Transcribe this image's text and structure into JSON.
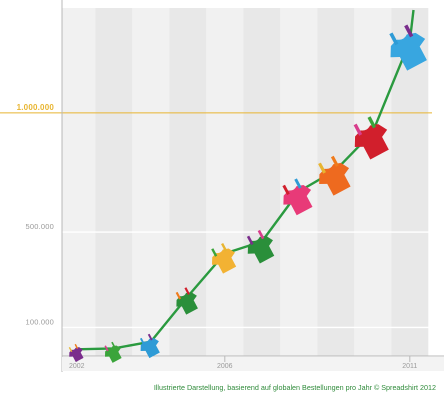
{
  "chart_data": {
    "type": "line",
    "caption": "Illustrierte Darstellung, basierend auf globalen Bestellungen pro Jahr © Spreadshirt 2012",
    "x_ticks": [
      "2002",
      "2006",
      "2011"
    ],
    "y_ticks": [
      {
        "value": 100000,
        "label": "100.000",
        "highlight": false
      },
      {
        "value": 500000,
        "label": "500.000",
        "highlight": false
      },
      {
        "value": 1000000,
        "label": "1.000.000",
        "highlight": true
      }
    ],
    "x": [
      2002,
      2003,
      2004,
      2005,
      2006,
      2007,
      2008,
      2009,
      2010,
      2011
    ],
    "values": [
      8000,
      12000,
      40000,
      230000,
      410000,
      460000,
      670000,
      760000,
      920000,
      1300000
    ],
    "ylim": [
      -20000,
      1440000
    ],
    "xlim": [
      2001.6,
      2011.6
    ],
    "grid": true,
    "colors": {
      "line": "#2a9a3f",
      "highlight_line": "#e8b531",
      "band_light": "#f1f1f1",
      "band_dark": "#e8e8e8",
      "axis": "#b8b8b8",
      "shirts": [
        "#7a2d8c",
        "#3aa43a",
        "#2e9bd6",
        "#2a8f3a",
        "#f2b233",
        "#2a8f3a",
        "#e83a78",
        "#ee6a1f",
        "#d11f2c",
        "#38a6e0"
      ]
    }
  }
}
